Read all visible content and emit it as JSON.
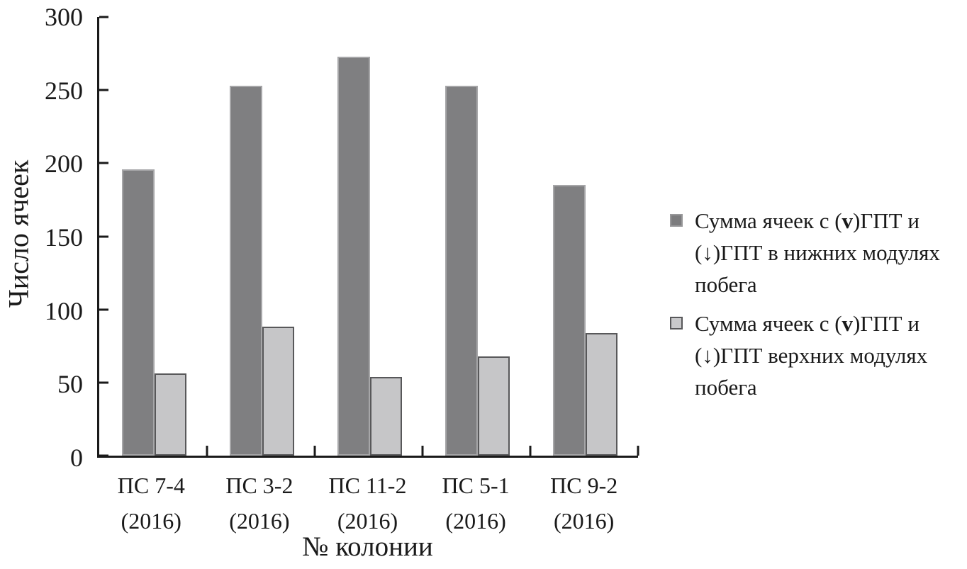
{
  "colors": {
    "axis": "#1a1a1a",
    "series1_fill": "#7f7f81",
    "series1_border": "#a6a6a8",
    "series2_fill": "#c6c6c8",
    "series2_border": "#58585a",
    "legend_swatch1_fill": "#7c7c7e",
    "legend_swatch1_border": "#98989a",
    "legend_swatch2_fill": "#c9c9cb",
    "legend_swatch2_border": "#58585a"
  },
  "chart_data": {
    "type": "bar",
    "title": "",
    "xlabel": "№ колонии",
    "ylabel": "Число ячеек",
    "ylim": [
      0,
      300
    ],
    "yticks": [
      0,
      50,
      100,
      150,
      200,
      250,
      300
    ],
    "grid": false,
    "legend_position": "right",
    "categories": [
      "ПС 7-4 (2016)",
      "ПС 3-2 (2016)",
      "ПС 11-2 (2016)",
      "ПС 5-1 (2016)",
      "ПС 9-2 (2016)"
    ],
    "category_lines": [
      [
        "ПС 7-4",
        "(2016)"
      ],
      [
        "ПС 3-2",
        "(2016)"
      ],
      [
        "ПС 11-2",
        "(2016)"
      ],
      [
        "ПС 5-1",
        "(2016)"
      ],
      [
        "ПС 9-2",
        "(2016)"
      ]
    ],
    "series": [
      {
        "name": "Сумма ячеек с (v)ГПТ и (↓)ГПТ в нижних модулях побега",
        "color": "#7f7f81",
        "border": "#a6a6a8",
        "values": [
          196,
          253,
          273,
          253,
          185
        ]
      },
      {
        "name": "Сумма ячеек с (v)ГПТ и (↓)ГПТ верхних модулях побега",
        "color": "#c6c6c8",
        "border": "#58585a",
        "values": [
          56,
          88,
          54,
          68,
          84
        ]
      }
    ]
  },
  "legend": {
    "items": [
      {
        "swatch_fill": "#7c7c7e",
        "swatch_border": "#98989a",
        "lines": [
          [
            {
              "text": "Сумма ячеек с ("
            },
            {
              "text": "v",
              "bold": true
            },
            {
              "text": ")ГПТ и"
            }
          ],
          [
            {
              "text": "(↓)ГПТ в нижних модулях"
            }
          ],
          [
            {
              "text": "побега"
            }
          ]
        ]
      },
      {
        "swatch_fill": "#c9c9cb",
        "swatch_border": "#58585a",
        "lines": [
          [
            {
              "text": "Сумма ячеек с ("
            },
            {
              "text": "v",
              "bold": true
            },
            {
              "text": ")ГПТ и"
            }
          ],
          [
            {
              "text": "(↓)ГПТ верхних модулях"
            }
          ],
          [
            {
              "text": "побега"
            }
          ]
        ]
      }
    ]
  }
}
